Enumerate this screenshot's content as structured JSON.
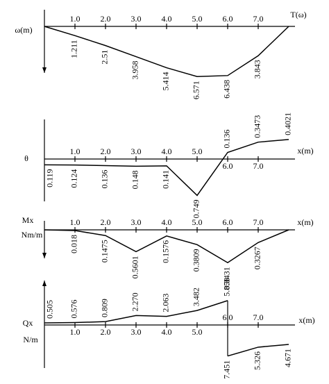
{
  "chart_data": [
    {
      "type": "line",
      "color": "#000000",
      "y_label": "ω(m)",
      "x_label": "T(ω)",
      "y_inverted": true,
      "xlim": [
        0,
        8
      ],
      "xticks": [
        {
          "value": 1,
          "label": "1.0"
        },
        {
          "value": 2,
          "label": "2.0"
        },
        {
          "value": 3,
          "label": "3.0"
        },
        {
          "value": 4,
          "label": "4.0"
        },
        {
          "value": 5,
          "label": "5.0"
        },
        {
          "value": 6,
          "label": "6.0"
        },
        {
          "value": 7,
          "label": "7.0"
        }
      ],
      "series": [
        {
          "x": [
            0,
            1,
            2,
            3,
            4,
            5,
            6,
            7,
            8
          ],
          "values": [
            0,
            1.211,
            2.51,
            3.958,
            5.414,
            6.571,
            6.438,
            3.843,
            0
          ],
          "value_labels": [
            null,
            "1.211",
            "2.51",
            "3.958",
            "5.414",
            "6.571",
            "6.438",
            "3.843",
            null
          ]
        }
      ]
    },
    {
      "type": "line",
      "color": "#000000",
      "y_label": "θ",
      "x_label": "x(m)",
      "y_inverted": false,
      "xlim": [
        0,
        8
      ],
      "xticks": [
        {
          "value": 1,
          "label": "1.0"
        },
        {
          "value": 2,
          "label": "2.0"
        },
        {
          "value": 3,
          "label": "3.0"
        },
        {
          "value": 4,
          "label": "4.0"
        },
        {
          "value": 5,
          "label": "5.0"
        },
        {
          "value": 6,
          "label": "6.0"
        },
        {
          "value": 7,
          "label": "7.0"
        }
      ],
      "series": [
        {
          "x": [
            0,
            1,
            2,
            3,
            4,
            5,
            6,
            7,
            8
          ],
          "values": [
            -0.119,
            -0.124,
            -0.136,
            -0.148,
            -0.141,
            -0.749,
            0.136,
            0.3473,
            0.4021
          ],
          "value_labels": [
            "0.119",
            "0.124",
            "0.136",
            "0.148",
            "0.141",
            "0.749",
            "0.136",
            "0.3473",
            "0.4021"
          ]
        }
      ]
    },
    {
      "type": "line",
      "color": "#000000",
      "y_label": "Mx",
      "y_unit": "Nm/m",
      "x_label": "x(m)",
      "y_inverted": true,
      "xlim": [
        0,
        8
      ],
      "xticks": [
        {
          "value": 1,
          "label": "1.0"
        },
        {
          "value": 2,
          "label": "2.0"
        },
        {
          "value": 3,
          "label": "3.0"
        },
        {
          "value": 4,
          "label": "4.0"
        },
        {
          "value": 5,
          "label": "5.0"
        },
        {
          "value": 6,
          "label": "6.0"
        },
        {
          "value": 7,
          "label": "7.0"
        }
      ],
      "series": [
        {
          "x": [
            0,
            1,
            2,
            3,
            4,
            5,
            6,
            7,
            8
          ],
          "values": [
            0,
            0.018,
            0.1475,
            0.5601,
            0.1576,
            0.3809,
            0.8431,
            0.3267,
            0
          ],
          "value_labels": [
            null,
            "0.018",
            "0.1475",
            "0.5601",
            "0.1576",
            "0.3809",
            "0.8431",
            "0.3267",
            null
          ]
        }
      ]
    },
    {
      "type": "line",
      "color": "#000000",
      "y_label": "Qx",
      "y_unit": "N/m",
      "x_label": "x(m)",
      "y_inverted": false,
      "xlim": [
        0,
        8
      ],
      "xticks": [
        {
          "value": 1,
          "label": "1.0"
        },
        {
          "value": 2,
          "label": "2.0"
        },
        {
          "value": 3,
          "label": "3.0"
        },
        {
          "value": 4,
          "label": "4.0"
        },
        {
          "value": 5,
          "label": "5.0"
        },
        {
          "value": 6,
          "label": "6.0"
        },
        {
          "value": 7,
          "label": "7.0"
        }
      ],
      "series": [
        {
          "x": [
            0,
            1,
            2,
            3,
            4,
            5,
            6
          ],
          "values": [
            0.505,
            0.576,
            0.809,
            2.27,
            2.063,
            3.482,
            5.858
          ],
          "value_labels": [
            "0.505",
            "0.576",
            "0.809",
            "2.270",
            "2.063",
            "3.482",
            "5.858"
          ]
        },
        {
          "x": [
            6,
            7,
            8
          ],
          "values": [
            -7.451,
            -5.326,
            -4.671
          ],
          "value_labels": [
            "7.451",
            "5.326",
            "4.671"
          ]
        }
      ]
    }
  ]
}
